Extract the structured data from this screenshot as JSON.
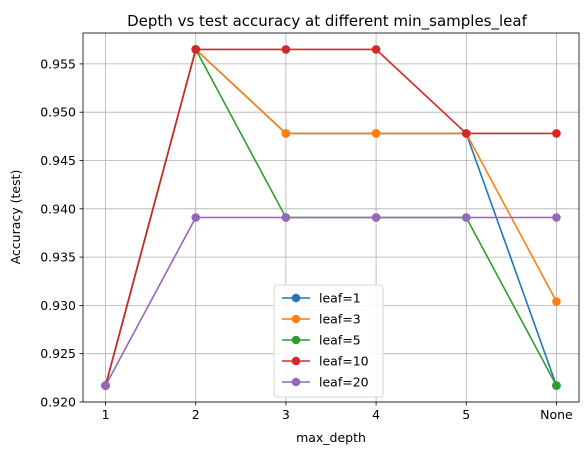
{
  "chart_data": {
    "type": "line",
    "title": "Depth vs test accuracy at different min_samples_leaf",
    "xlabel": "max_depth",
    "ylabel": "Accuracy (test)",
    "categories": [
      "1",
      "2",
      "3",
      "4",
      "5",
      "None"
    ],
    "ylim": [
      0.92,
      0.9582
    ],
    "yticks": [
      "0.920",
      "0.925",
      "0.930",
      "0.935",
      "0.940",
      "0.945",
      "0.950",
      "0.955"
    ],
    "ytick_values": [
      0.92,
      0.925,
      0.93,
      0.935,
      0.94,
      0.945,
      0.95,
      0.955
    ],
    "grid": true,
    "legend_position": "bottom-center",
    "series": [
      {
        "name": "leaf=1",
        "color": "#1f77b4",
        "values": [
          0.9217,
          0.9565,
          0.9478,
          0.9478,
          0.9478,
          0.9217
        ]
      },
      {
        "name": "leaf=3",
        "color": "#ff7f0e",
        "values": [
          0.9217,
          0.9565,
          0.9478,
          0.9478,
          0.9478,
          0.9304
        ]
      },
      {
        "name": "leaf=5",
        "color": "#2ca02c",
        "values": [
          0.9217,
          0.9565,
          0.9391,
          0.9391,
          0.9391,
          0.9217
        ]
      },
      {
        "name": "leaf=10",
        "color": "#d62728",
        "values": [
          0.9217,
          0.9565,
          0.9565,
          0.9565,
          0.9478,
          0.9478
        ]
      },
      {
        "name": "leaf=20",
        "color": "#9467bd",
        "values": [
          0.9217,
          0.9391,
          0.9391,
          0.9391,
          0.9391,
          0.9391
        ]
      }
    ]
  }
}
